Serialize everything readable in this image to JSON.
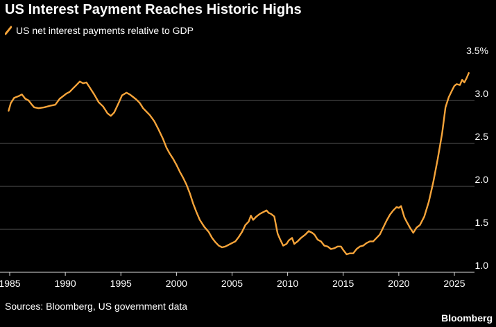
{
  "title": "US Interest Payment Reaches Historic Highs",
  "legend_label": "US net interest payments relative to GDP",
  "source": "Sources: Bloomberg, US government data",
  "brand": "Bloomberg",
  "colors": {
    "background": "#000000",
    "line": "#f6a43a",
    "grid": "#555555",
    "text": "#ffffff"
  },
  "chart_data": {
    "type": "line",
    "title": "US Interest Payment Reaches Historic Highs",
    "xlim": [
      1985,
      2026.5
    ],
    "ylim": [
      1.0,
      3.5
    ],
    "x_ticks": [
      1985,
      1990,
      1995,
      2000,
      2005,
      2010,
      2015,
      2020,
      2025
    ],
    "y_ticks": [
      1.0,
      1.5,
      2.0,
      2.5,
      3.0,
      3.5
    ],
    "y_tick_labels": [
      "1.0",
      "1.5",
      "2.0",
      "2.5",
      "3.0",
      "3.5%"
    ],
    "grid": "horizontal",
    "legend": "top-left",
    "series": [
      {
        "name": "US net interest payments relative to GDP",
        "x": [
          1984.9,
          1985.1,
          1985.4,
          1985.8,
          1986.1,
          1986.4,
          1986.7,
          1987.0,
          1987.2,
          1987.6,
          1988.1,
          1988.4,
          1988.7,
          1989.1,
          1989.5,
          1989.8,
          1990.1,
          1990.4,
          1990.7,
          1991.0,
          1991.3,
          1991.6,
          1991.9,
          1992.2,
          1992.6,
          1993.0,
          1993.4,
          1993.8,
          1994.1,
          1994.4,
          1994.8,
          1995.1,
          1995.5,
          1995.8,
          1996.1,
          1996.4,
          1996.7,
          1997.0,
          1997.3,
          1997.6,
          1998.0,
          1998.4,
          1998.8,
          1999.1,
          1999.4,
          1999.7,
          2000.0,
          2000.3,
          2000.6,
          2000.9,
          2001.2,
          2001.5,
          2001.8,
          2002.1,
          2002.5,
          2002.9,
          2003.2,
          2003.5,
          2003.8,
          2004.1,
          2004.4,
          2004.7,
          2005.0,
          2005.3,
          2005.6,
          2005.9,
          2006.2,
          2006.5,
          2006.7,
          2006.9,
          2007.2,
          2007.5,
          2007.8,
          2008.1,
          2008.3,
          2008.5,
          2008.8,
          2009.1,
          2009.3,
          2009.6,
          2009.9,
          2010.1,
          2010.4,
          2010.6,
          2010.9,
          2011.2,
          2011.6,
          2011.9,
          2012.2,
          2012.4,
          2012.7,
          2013.0,
          2013.3,
          2013.6,
          2013.9,
          2014.2,
          2014.5,
          2014.8,
          2015.0,
          2015.3,
          2015.6,
          2015.9,
          2016.2,
          2016.5,
          2016.8,
          2017.1,
          2017.4,
          2017.7,
          2018.0,
          2018.3,
          2018.6,
          2018.9,
          2019.2,
          2019.5,
          2019.8,
          2020.0,
          2020.2,
          2020.5,
          2020.7,
          2021.0,
          2021.3,
          2021.6,
          2021.9,
          2022.3,
          2022.7,
          2023.1,
          2023.5,
          2023.9,
          2024.2,
          2024.5,
          2024.8,
          2025.0,
          2025.2,
          2025.5,
          2025.7,
          2025.9,
          2026.1,
          2026.3
        ],
        "y": [
          2.88,
          2.97,
          3.03,
          3.05,
          3.07,
          3.02,
          3.0,
          2.95,
          2.92,
          2.91,
          2.92,
          2.93,
          2.94,
          2.95,
          3.02,
          3.05,
          3.08,
          3.1,
          3.14,
          3.18,
          3.22,
          3.2,
          3.21,
          3.15,
          3.07,
          2.98,
          2.93,
          2.85,
          2.82,
          2.86,
          2.97,
          3.06,
          3.09,
          3.07,
          3.04,
          3.01,
          2.97,
          2.91,
          2.87,
          2.83,
          2.76,
          2.66,
          2.55,
          2.45,
          2.38,
          2.32,
          2.25,
          2.17,
          2.1,
          2.02,
          1.92,
          1.8,
          1.7,
          1.61,
          1.53,
          1.47,
          1.4,
          1.35,
          1.31,
          1.29,
          1.3,
          1.32,
          1.34,
          1.36,
          1.41,
          1.47,
          1.55,
          1.59,
          1.66,
          1.61,
          1.65,
          1.68,
          1.7,
          1.72,
          1.69,
          1.68,
          1.65,
          1.45,
          1.39,
          1.31,
          1.33,
          1.37,
          1.4,
          1.33,
          1.36,
          1.4,
          1.44,
          1.48,
          1.46,
          1.44,
          1.38,
          1.36,
          1.31,
          1.3,
          1.27,
          1.28,
          1.3,
          1.3,
          1.26,
          1.21,
          1.22,
          1.22,
          1.27,
          1.3,
          1.31,
          1.34,
          1.36,
          1.36,
          1.4,
          1.44,
          1.52,
          1.6,
          1.67,
          1.72,
          1.76,
          1.75,
          1.77,
          1.64,
          1.59,
          1.52,
          1.46,
          1.52,
          1.55,
          1.65,
          1.82,
          2.05,
          2.32,
          2.62,
          2.92,
          3.04,
          3.12,
          3.17,
          3.19,
          3.18,
          3.24,
          3.21,
          3.26,
          3.32
        ]
      }
    ]
  }
}
